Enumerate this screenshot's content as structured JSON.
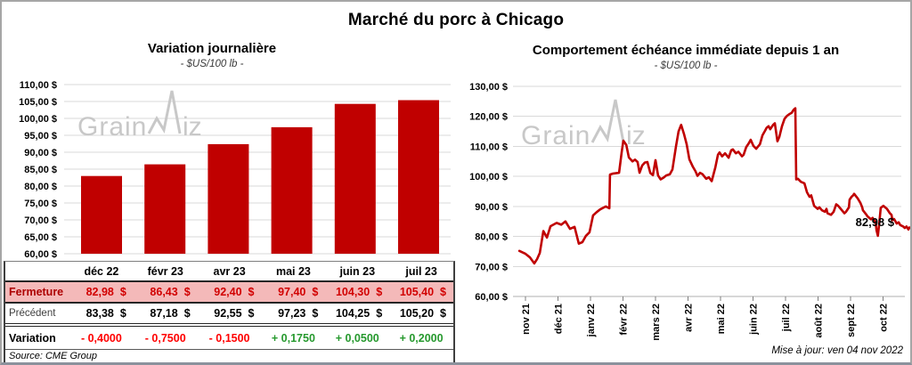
{
  "header": {
    "title": "Marché du porc à Chicago"
  },
  "watermark": {
    "part1": "Grain",
    "part2": "iz"
  },
  "left_chart": {
    "title": "Variation journalière",
    "subtitle": "- $US/100 lb -"
  },
  "right_chart": {
    "title": "Comportement échéance immédiate depuis 1 an",
    "subtitle": "- $US/100 lb -",
    "annotation": "82,98 $"
  },
  "table": {
    "columns": [
      "déc 22",
      "févr 23",
      "avr 23",
      "mai 23",
      "juin 23",
      "juil 23"
    ],
    "rows": [
      {
        "label": "Fermeture",
        "style": "close",
        "currency": "$",
        "values": [
          "82,98",
          "86,43",
          "92,40",
          "97,40",
          "104,30",
          "105,40"
        ]
      },
      {
        "label": "Précédent",
        "style": "previous",
        "currency": "$",
        "values": [
          "83,38",
          "87,18",
          "92,55",
          "97,23",
          "104,25",
          "105,20"
        ]
      },
      {
        "label": "Variation",
        "style": "variation",
        "values": [
          "- 0,4000",
          "- 0,7500",
          "- 0,1500",
          "+ 0,1750",
          "+ 0,0500",
          "+ 0,2000"
        ]
      }
    ],
    "source": "Source: CME Group"
  },
  "footer": {
    "updated": "Mise à jour: ven 04 nov 2022"
  },
  "colors": {
    "bar": "#c00000",
    "line": "#c00000",
    "grid": "#d9d9d9",
    "axis": "#bfbfbf",
    "tick": "#7f7f7f",
    "watermark": "#c8c8c8",
    "close_row_bg": "#f4b9b9",
    "close_text": "#d10000",
    "negative": "#ff0000",
    "positive": "#26992e"
  },
  "chart_data": [
    {
      "type": "bar",
      "title": "Variation journalière",
      "subtitle": "- $US/100 lb -",
      "xlabel": "",
      "ylabel": "$US/100 lb",
      "categories": [
        "déc 22",
        "févr 23",
        "avr 23",
        "mai 23",
        "juin 23",
        "juil 23"
      ],
      "values": [
        82.98,
        86.43,
        92.4,
        97.4,
        104.3,
        105.4
      ],
      "ylim": [
        60,
        110
      ],
      "ytick_step": 5,
      "grid": true,
      "legend": false
    },
    {
      "type": "line",
      "title": "Comportement échéance immédiate depuis 1 an",
      "subtitle": "- $US/100 lb -",
      "ylabel": "$US/100 lb",
      "ylim": [
        60,
        130
      ],
      "ytick_step": 10,
      "grid": true,
      "legend": false,
      "x_labels": [
        "nov 21",
        "déc 21",
        "janv 22",
        "févr 22",
        "mars 22",
        "avr 22",
        "mai 22",
        "juin 22",
        "juil 22",
        "août 22",
        "sept 22",
        "oct 22"
      ],
      "last_value_label": "82,98 $",
      "points": [
        [
          -0.19,
          75.2
        ],
        [
          0,
          74.2
        ],
        [
          0.14,
          73.0
        ],
        [
          0.27,
          71.0
        ],
        [
          0.36,
          72.5
        ],
        [
          0.44,
          74.5
        ],
        [
          0.55,
          81.8
        ],
        [
          0.66,
          79.6
        ],
        [
          0.77,
          83.4
        ],
        [
          0.96,
          84.5
        ],
        [
          1.1,
          83.9
        ],
        [
          1.23,
          85.0
        ],
        [
          1.37,
          82.5
        ],
        [
          1.51,
          83.2
        ],
        [
          1.64,
          77.6
        ],
        [
          1.75,
          78.1
        ],
        [
          1.86,
          80.2
        ],
        [
          1.97,
          81.4
        ],
        [
          2.08,
          87.0
        ],
        [
          2.19,
          88.1
        ],
        [
          2.3,
          89.0
        ],
        [
          2.47,
          90.0
        ],
        [
          2.58,
          89.4
        ],
        [
          2.6,
          100.6
        ],
        [
          2.68,
          100.9
        ],
        [
          2.88,
          101.2
        ],
        [
          2.96,
          108.0
        ],
        [
          3.01,
          111.9
        ],
        [
          3.1,
          110.5
        ],
        [
          3.18,
          106.3
        ],
        [
          3.29,
          105.0
        ],
        [
          3.37,
          105.6
        ],
        [
          3.45,
          104.8
        ],
        [
          3.51,
          101.2
        ],
        [
          3.59,
          103.6
        ],
        [
          3.67,
          104.6
        ],
        [
          3.75,
          104.8
        ],
        [
          3.84,
          101.1
        ],
        [
          3.92,
          100.4
        ],
        [
          4.0,
          105.4
        ],
        [
          4.08,
          100.3
        ],
        [
          4.16,
          99.0
        ],
        [
          4.25,
          99.6
        ],
        [
          4.33,
          100.3
        ],
        [
          4.44,
          100.7
        ],
        [
          4.52,
          102.3
        ],
        [
          4.63,
          110.0
        ],
        [
          4.71,
          115.0
        ],
        [
          4.79,
          117.2
        ],
        [
          4.88,
          114.0
        ],
        [
          4.96,
          110.7
        ],
        [
          5.04,
          105.7
        ],
        [
          5.15,
          103.2
        ],
        [
          5.23,
          101.7
        ],
        [
          5.29,
          100.2
        ],
        [
          5.37,
          101.2
        ],
        [
          5.45,
          100.7
        ],
        [
          5.56,
          99.2
        ],
        [
          5.64,
          99.7
        ],
        [
          5.73,
          98.4
        ],
        [
          5.84,
          103.0
        ],
        [
          5.92,
          107.2
        ],
        [
          5.97,
          108.0
        ],
        [
          6.05,
          106.7
        ],
        [
          6.14,
          107.7
        ],
        [
          6.25,
          106.2
        ],
        [
          6.33,
          108.7
        ],
        [
          6.38,
          109.0
        ],
        [
          6.47,
          107.7
        ],
        [
          6.55,
          108.2
        ],
        [
          6.66,
          106.7
        ],
        [
          6.71,
          107.2
        ],
        [
          6.79,
          109.7
        ],
        [
          6.88,
          111.2
        ],
        [
          6.93,
          112.2
        ],
        [
          7.01,
          110.2
        ],
        [
          7.1,
          109.2
        ],
        [
          7.21,
          110.7
        ],
        [
          7.29,
          113.7
        ],
        [
          7.37,
          115.2
        ],
        [
          7.42,
          116.2
        ],
        [
          7.48,
          116.7
        ],
        [
          7.53,
          115.7
        ],
        [
          7.62,
          117.2
        ],
        [
          7.67,
          117.7
        ],
        [
          7.75,
          111.7
        ],
        [
          7.81,
          113.2
        ],
        [
          7.89,
          116.7
        ],
        [
          7.97,
          119.2
        ],
        [
          8.05,
          120.2
        ],
        [
          8.11,
          120.7
        ],
        [
          8.19,
          121.2
        ],
        [
          8.25,
          122.2
        ],
        [
          8.3,
          122.7
        ],
        [
          8.33,
          99.0
        ],
        [
          8.38,
          99.2
        ],
        [
          8.47,
          98.2
        ],
        [
          8.58,
          97.7
        ],
        [
          8.66,
          94.7
        ],
        [
          8.74,
          93.2
        ],
        [
          8.79,
          93.7
        ],
        [
          8.88,
          90.2
        ],
        [
          8.99,
          89.2
        ],
        [
          9.04,
          89.7
        ],
        [
          9.12,
          88.7
        ],
        [
          9.21,
          88.2
        ],
        [
          9.26,
          89.2
        ],
        [
          9.29,
          87.7
        ],
        [
          9.4,
          87.2
        ],
        [
          9.48,
          88.2
        ],
        [
          9.56,
          90.7
        ],
        [
          9.62,
          90.2
        ],
        [
          9.7,
          89.2
        ],
        [
          9.81,
          87.7
        ],
        [
          9.86,
          88.2
        ],
        [
          9.95,
          89.7
        ],
        [
          9.97,
          92.2
        ],
        [
          10.03,
          93.2
        ],
        [
          10.08,
          93.7
        ],
        [
          10.11,
          94.2
        ],
        [
          10.22,
          92.7
        ],
        [
          10.3,
          91.2
        ],
        [
          10.36,
          89.7
        ],
        [
          10.38,
          88.7
        ],
        [
          10.49,
          87.2
        ],
        [
          10.52,
          86.7
        ],
        [
          10.63,
          85.7
        ],
        [
          10.68,
          86.2
        ],
        [
          10.77,
          84.7
        ],
        [
          10.8,
          82.0
        ],
        [
          10.84,
          80.2
        ],
        [
          10.88,
          84.0
        ],
        [
          10.93,
          89.5
        ],
        [
          11.01,
          90.2
        ],
        [
          11.12,
          89.2
        ],
        [
          11.21,
          87.7
        ],
        [
          11.26,
          87.2
        ],
        [
          11.29,
          85.4
        ],
        [
          11.34,
          85.8
        ],
        [
          11.42,
          84.3
        ],
        [
          11.48,
          84.7
        ],
        [
          11.53,
          83.8
        ],
        [
          11.62,
          83.3
        ],
        [
          11.67,
          82.8
        ],
        [
          11.72,
          83.3
        ],
        [
          11.78,
          82.3
        ],
        [
          11.81,
          82.98
        ]
      ]
    }
  ]
}
